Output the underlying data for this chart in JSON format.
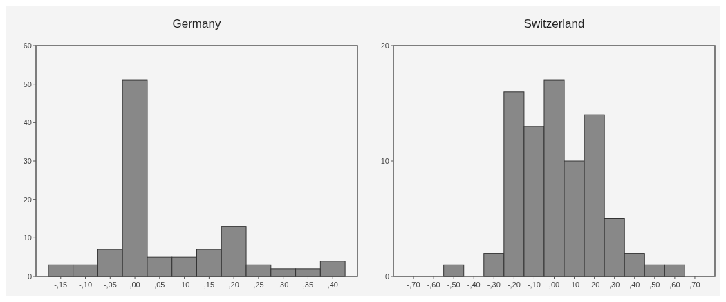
{
  "chart_data": [
    {
      "type": "bar",
      "title": "Germany",
      "categories": [
        "-,15",
        "-,10",
        "-,05",
        ",00",
        ",05",
        ",10",
        ",15",
        ",20",
        ",25",
        ",30",
        ",35",
        ",40"
      ],
      "values": [
        3,
        3,
        7,
        51,
        5,
        5,
        7,
        13,
        3,
        2,
        2,
        4
      ],
      "color": "#888888",
      "ylim": [
        0,
        60
      ],
      "yticks": [
        0,
        10,
        20,
        30,
        40,
        50,
        60
      ],
      "grid": false
    },
    {
      "type": "bar",
      "title": "Switzerland",
      "categories": [
        "-,70",
        "-,60",
        "-,50",
        "-,40",
        "-,30",
        "-,20",
        "-,10",
        ",00",
        ",10",
        ",20",
        ",30",
        ",40",
        ",50",
        ",60",
        ",70"
      ],
      "values": [
        0,
        0,
        1,
        0,
        2,
        16,
        13,
        17,
        10,
        14,
        5,
        2,
        1,
        1,
        0
      ],
      "color": "#888888",
      "ylim": [
        0,
        20
      ],
      "yticks": [
        0,
        10,
        20
      ],
      "grid": false
    }
  ]
}
